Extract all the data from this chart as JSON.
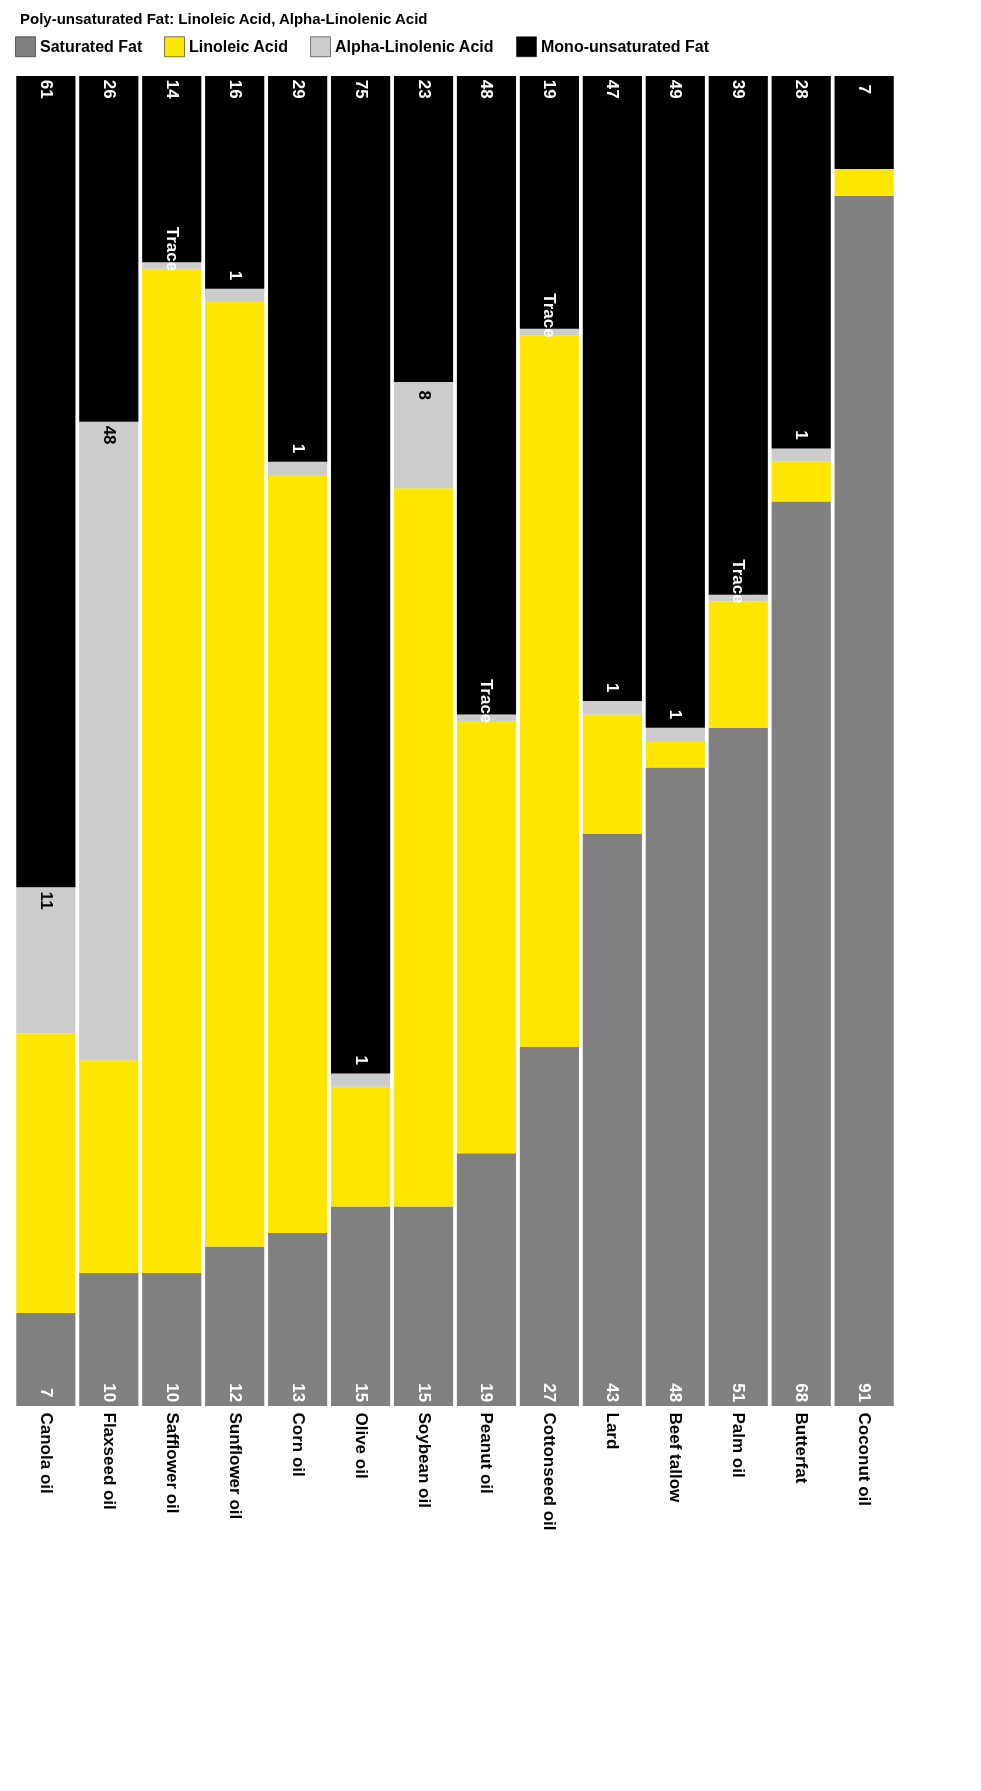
{
  "chart_data": {
    "type": "bar",
    "stacked": true,
    "categories": [
      "Canola oil",
      "Flaxseed oil",
      "Safflower oil",
      "Sunflower oil",
      "Corn oil",
      "Olive oil",
      "Soybean oil",
      "Peanut oil",
      "Cottonseed oil",
      "Lard",
      "Beef tallow",
      "Palm oil",
      "Butterfat",
      "Coconut oil"
    ],
    "series": [
      {
        "name": "Saturated Fat",
        "color": "#808080",
        "values": [
          7,
          10,
          10,
          12,
          13,
          15,
          15,
          19,
          27,
          43,
          48,
          51,
          68,
          91
        ],
        "value_labels": [
          "7",
          "10",
          "10",
          "12",
          "13",
          "15",
          "15",
          "19",
          "27",
          "43",
          "48",
          "51",
          "68",
          "91"
        ]
      },
      {
        "name": "Linoleic Acid",
        "color": "#ffe600",
        "values": [
          21,
          16,
          75.5,
          71,
          57,
          9,
          54,
          32.5,
          53.5,
          9,
          2,
          9.5,
          3,
          2
        ]
      },
      {
        "name": "Alpha-Linolenic Acid",
        "color": "#cccccc",
        "values": [
          11,
          48,
          0.5,
          1,
          1,
          1,
          8,
          0.5,
          0.5,
          1,
          1,
          0.5,
          1,
          null
        ],
        "value_labels": [
          "11",
          "48",
          "Trace",
          "1",
          "1",
          "1",
          "8",
          "Trace",
          "Trace",
          "1",
          "1",
          "Trace",
          "1",
          null
        ]
      },
      {
        "name": "Mono-unsaturated Fat",
        "color": "#000000",
        "values": [
          61,
          26,
          14,
          16,
          29,
          75,
          23,
          48,
          19,
          47,
          49,
          39,
          28,
          7
        ],
        "value_labels": [
          "61",
          "26",
          "14",
          "16",
          "29",
          "75",
          "23",
          "48",
          "19",
          "47",
          "49",
          "39",
          "28",
          "7"
        ]
      }
    ],
    "ylim": [
      0,
      100
    ],
    "tick_labels": "x",
    "legend": "top",
    "annotations": [
      "Poly-unsaturated Fat: Linoleic Acid, Alpha-Linolenic Acid"
    ]
  }
}
